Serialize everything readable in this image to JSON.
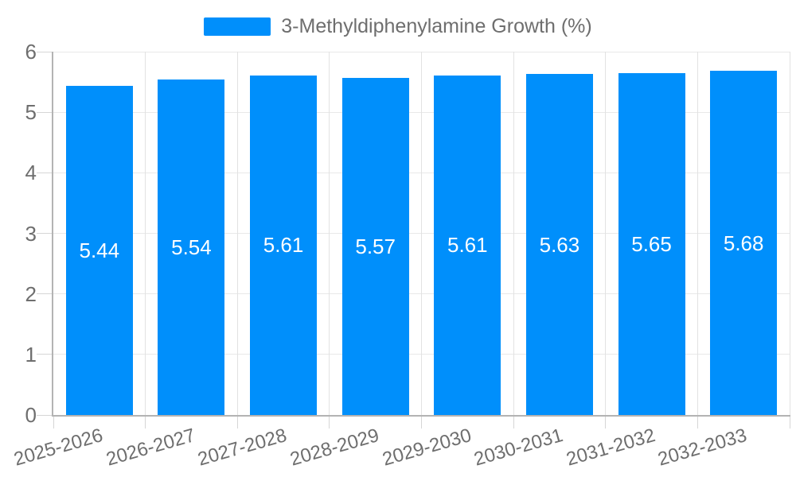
{
  "chart_data": {
    "type": "bar",
    "title": "3-Methyldiphenylamine Growth (%)",
    "categories": [
      "2025-2026",
      "2026-2027",
      "2027-2028",
      "2028-2029",
      "2029-2030",
      "2030-2031",
      "2031-2032",
      "2032-2033"
    ],
    "values": [
      5.44,
      5.54,
      5.61,
      5.57,
      5.61,
      5.63,
      5.65,
      5.68
    ],
    "value_labels": [
      "5.44",
      "5.54",
      "5.61",
      "5.57",
      "5.61",
      "5.63",
      "5.65",
      "5.68"
    ],
    "ylim": [
      0,
      6
    ],
    "yticks": [
      0,
      1,
      2,
      3,
      4,
      5,
      6
    ],
    "xlabel": "",
    "ylabel": "",
    "legend_position": "top",
    "grid": true,
    "colors": {
      "bar": "#008FFB",
      "value_label": "#ffffff",
      "axis_label": "#6e6e6e",
      "legend_text": "#6e6e6e",
      "grid_line": "#e8e8e8",
      "axis_line": "#b3b3b3"
    }
  }
}
